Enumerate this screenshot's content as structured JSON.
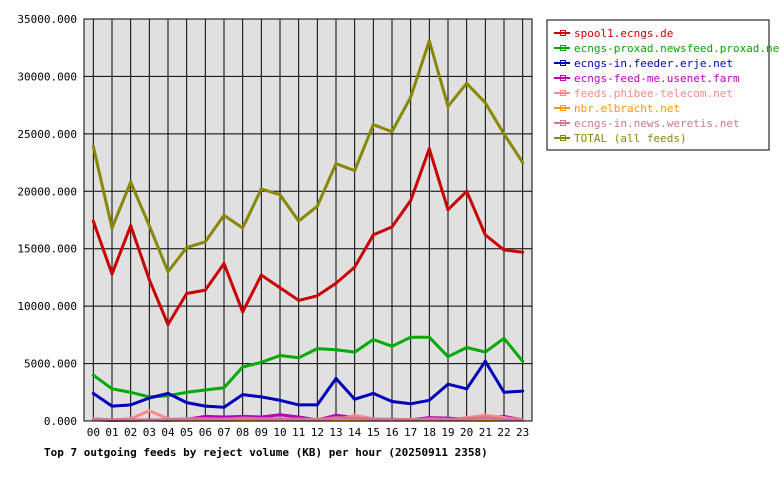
{
  "chart_data": {
    "type": "line",
    "title": "Top 7 outgoing feeds by reject volume (KB) per hour (20250911 2358)",
    "xlabel": "",
    "ylabel": "",
    "ylim": [
      0,
      35000
    ],
    "yticks": [
      "0.000",
      "5000.000",
      "10000.000",
      "15000.000",
      "20000.000",
      "25000.000",
      "30000.000",
      "35000.000"
    ],
    "categories": [
      "00",
      "01",
      "02",
      "03",
      "04",
      "05",
      "06",
      "07",
      "08",
      "09",
      "10",
      "11",
      "12",
      "13",
      "14",
      "15",
      "16",
      "17",
      "18",
      "19",
      "20",
      "21",
      "22",
      "23"
    ],
    "grid": true,
    "legend_position": "top-right",
    "background": "#e0e0e0",
    "series": [
      {
        "name": "spool1.ecngs.de",
        "color": "#cc0000",
        "values": [
          17400,
          12800,
          17000,
          12300,
          8400,
          11100,
          11400,
          13700,
          9500,
          12700,
          11600,
          10500,
          10900,
          12000,
          13400,
          16200,
          16900,
          19200,
          23700,
          18400,
          20000,
          16200,
          14900,
          14700
        ]
      },
      {
        "name": "ecngs-proxad.newsfeed.proxad.net",
        "color": "#00aa00",
        "values": [
          4000,
          2800,
          2500,
          2100,
          2200,
          2500,
          2700,
          2900,
          4700,
          5100,
          5700,
          5500,
          6300,
          6200,
          6000,
          7100,
          6500,
          7300,
          7300,
          5600,
          6400,
          6000,
          7200,
          5200
        ]
      },
      {
        "name": "ecngs-in.feeder.erje.net",
        "color": "#0000bb",
        "values": [
          2400,
          1300,
          1400,
          2000,
          2400,
          1600,
          1300,
          1200,
          2300,
          2100,
          1800,
          1400,
          1400,
          3700,
          1900,
          2400,
          1700,
          1500,
          1800,
          3200,
          2800,
          5200,
          2500,
          2600
        ]
      },
      {
        "name": "ecngs-feed-me.usenet.farm",
        "color": "#bb00bb",
        "values": [
          100,
          50,
          50,
          100,
          50,
          150,
          400,
          350,
          400,
          350,
          550,
          350,
          100,
          500,
          300,
          100,
          150,
          100,
          300,
          250,
          150,
          250,
          400,
          100
        ]
      },
      {
        "name": "feeds.phibee-telecom.net",
        "color": "#ff8888",
        "values": [
          200,
          100,
          200,
          900,
          200,
          100,
          100,
          150,
          100,
          100,
          100,
          150,
          150,
          100,
          500,
          200,
          100,
          150,
          100,
          100,
          300,
          500,
          300,
          100
        ]
      },
      {
        "name": "nbr.elbracht.net",
        "color": "#ff9900",
        "values": [
          100,
          80,
          60,
          80,
          60,
          60,
          80,
          60,
          80,
          80,
          80,
          60,
          60,
          80,
          80,
          60,
          80,
          60,
          80,
          60,
          80,
          60,
          80,
          60
        ]
      },
      {
        "name": "ecngs-in.news.weretis.net",
        "color": "#cc7799",
        "values": [
          150,
          100,
          100,
          100,
          100,
          200,
          200,
          150,
          250,
          200,
          200,
          150,
          100,
          300,
          250,
          150,
          150,
          100,
          200,
          150,
          200,
          300,
          150,
          100
        ]
      },
      {
        "name": "TOTAL (all feeds)",
        "color": "#888800",
        "values": [
          23900,
          16800,
          20800,
          17000,
          13000,
          15100,
          15600,
          17900,
          16800,
          20200,
          19700,
          17400,
          18700,
          22400,
          21800,
          25800,
          25200,
          28200,
          33100,
          27400,
          29400,
          27700,
          25000,
          22500
        ]
      }
    ]
  }
}
